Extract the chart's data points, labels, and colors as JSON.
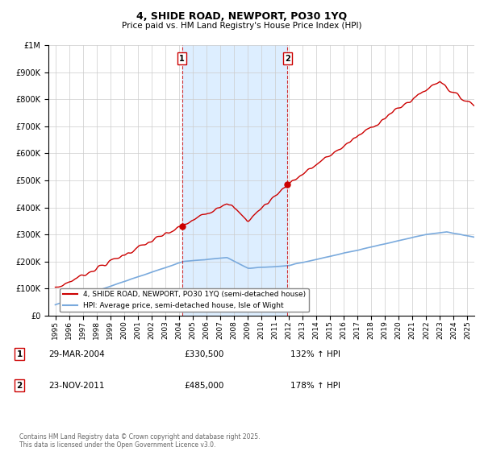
{
  "title": "4, SHIDE ROAD, NEWPORT, PO30 1YQ",
  "subtitle": "Price paid vs. HM Land Registry's House Price Index (HPI)",
  "legend_entry1": "4, SHIDE ROAD, NEWPORT, PO30 1YQ (semi-detached house)",
  "legend_entry2": "HPI: Average price, semi-detached house, Isle of Wight",
  "footnote": "Contains HM Land Registry data © Crown copyright and database right 2025.\nThis data is licensed under the Open Government Licence v3.0.",
  "annotation1_date": "29-MAR-2004",
  "annotation1_price": "£330,500",
  "annotation1_hpi": "132% ↑ HPI",
  "annotation2_date": "23-NOV-2011",
  "annotation2_price": "£485,000",
  "annotation2_hpi": "178% ↑ HPI",
  "sale1_year": 2004.22,
  "sale1_price": 330500,
  "sale2_year": 2011.9,
  "sale2_price": 485000,
  "ylim": [
    0,
    1000000
  ],
  "xlim": [
    1994.5,
    2025.5
  ],
  "red_color": "#cc0000",
  "blue_color": "#7aaadd",
  "shade_color": "#ddeeff",
  "background_color": "#ffffff",
  "grid_color": "#cccccc"
}
